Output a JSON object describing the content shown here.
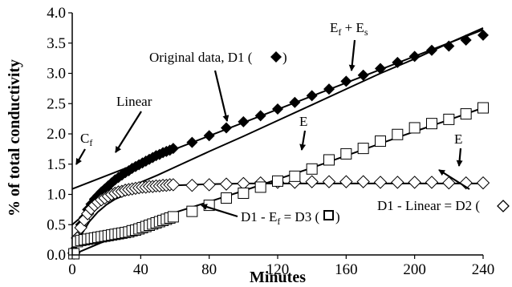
{
  "chart_data": {
    "type": "scatter",
    "xlabel": "Minutes",
    "ylabel": "% of total conductivity",
    "xlim": [
      0,
      240
    ],
    "ylim": [
      0,
      4
    ],
    "x_ticks": [
      "0",
      "40",
      "80",
      "120",
      "160",
      "200",
      "240"
    ],
    "y_ticks": [
      "0.0",
      "0.5",
      "1.0",
      "1.5",
      "2.0",
      "2.5",
      "3.0",
      "3.5",
      "4.0"
    ],
    "grid": false,
    "legend": "none",
    "series": [
      {
        "name": "Original data, D1",
        "marker": "filled-diamond",
        "color": "#000000",
        "points": [
          [
            1,
            0.08
          ],
          [
            3,
            0.3
          ],
          [
            5,
            0.5
          ],
          [
            7,
            0.62
          ],
          [
            9,
            0.75
          ],
          [
            11,
            0.84
          ],
          [
            13,
            0.92
          ],
          [
            15,
            0.98
          ],
          [
            17,
            1.04
          ],
          [
            19,
            1.09
          ],
          [
            21,
            1.14
          ],
          [
            23,
            1.19
          ],
          [
            25,
            1.24
          ],
          [
            27,
            1.28
          ],
          [
            29,
            1.32
          ],
          [
            31,
            1.36
          ],
          [
            33,
            1.39
          ],
          [
            35,
            1.43
          ],
          [
            37,
            1.46
          ],
          [
            39,
            1.49
          ],
          [
            41,
            1.52
          ],
          [
            43,
            1.55
          ],
          [
            45,
            1.58
          ],
          [
            47,
            1.61
          ],
          [
            49,
            1.64
          ],
          [
            51,
            1.66
          ],
          [
            53,
            1.69
          ],
          [
            55,
            1.71
          ],
          [
            57,
            1.73
          ],
          [
            59,
            1.76
          ],
          [
            70,
            1.86
          ],
          [
            80,
            1.97
          ],
          [
            90,
            2.1
          ],
          [
            100,
            2.2
          ],
          [
            110,
            2.3
          ],
          [
            120,
            2.41
          ],
          [
            130,
            2.52
          ],
          [
            140,
            2.63
          ],
          [
            150,
            2.74
          ],
          [
            160,
            2.87
          ],
          [
            170,
            2.97
          ],
          [
            180,
            3.08
          ],
          [
            190,
            3.18
          ],
          [
            200,
            3.28
          ],
          [
            210,
            3.38
          ],
          [
            220,
            3.45
          ],
          [
            230,
            3.55
          ],
          [
            240,
            3.63
          ]
        ]
      },
      {
        "name": "D1 - Linear = D2",
        "marker": "open-diamond",
        "color": "#000000",
        "points": [
          [
            1,
            0.03
          ],
          [
            3,
            0.28
          ],
          [
            5,
            0.45
          ],
          [
            7,
            0.58
          ],
          [
            9,
            0.68
          ],
          [
            11,
            0.76
          ],
          [
            13,
            0.82
          ],
          [
            15,
            0.87
          ],
          [
            17,
            0.91
          ],
          [
            19,
            0.94
          ],
          [
            21,
            0.97
          ],
          [
            23,
            1.0
          ],
          [
            25,
            1.02
          ],
          [
            27,
            1.04
          ],
          [
            29,
            1.05
          ],
          [
            31,
            1.07
          ],
          [
            33,
            1.08
          ],
          [
            35,
            1.09
          ],
          [
            37,
            1.1
          ],
          [
            39,
            1.11
          ],
          [
            41,
            1.12
          ],
          [
            43,
            1.12
          ],
          [
            45,
            1.13
          ],
          [
            47,
            1.13
          ],
          [
            49,
            1.14
          ],
          [
            51,
            1.14
          ],
          [
            53,
            1.15
          ],
          [
            55,
            1.15
          ],
          [
            57,
            1.16
          ],
          [
            59,
            1.16
          ],
          [
            70,
            1.15
          ],
          [
            80,
            1.16
          ],
          [
            90,
            1.17
          ],
          [
            100,
            1.18
          ],
          [
            110,
            1.19
          ],
          [
            120,
            1.2
          ],
          [
            130,
            1.2
          ],
          [
            140,
            1.21
          ],
          [
            150,
            1.21
          ],
          [
            160,
            1.21
          ],
          [
            170,
            1.21
          ],
          [
            180,
            1.2
          ],
          [
            190,
            1.2
          ],
          [
            200,
            1.2
          ],
          [
            210,
            1.2
          ],
          [
            220,
            1.19
          ],
          [
            230,
            1.19
          ],
          [
            240,
            1.19
          ]
        ]
      },
      {
        "name": "D1 - Ef = D3",
        "marker": "open-square",
        "color": "#000000",
        "points": [
          [
            1,
            0.02
          ],
          [
            3,
            0.22
          ],
          [
            5,
            0.24
          ],
          [
            7,
            0.25
          ],
          [
            9,
            0.26
          ],
          [
            11,
            0.27
          ],
          [
            13,
            0.28
          ],
          [
            15,
            0.29
          ],
          [
            17,
            0.3
          ],
          [
            19,
            0.31
          ],
          [
            21,
            0.32
          ],
          [
            23,
            0.33
          ],
          [
            25,
            0.34
          ],
          [
            27,
            0.35
          ],
          [
            29,
            0.36
          ],
          [
            31,
            0.37
          ],
          [
            33,
            0.38
          ],
          [
            35,
            0.4
          ],
          [
            37,
            0.41
          ],
          [
            39,
            0.43
          ],
          [
            41,
            0.45
          ],
          [
            43,
            0.47
          ],
          [
            45,
            0.49
          ],
          [
            47,
            0.51
          ],
          [
            49,
            0.53
          ],
          [
            51,
            0.55
          ],
          [
            53,
            0.57
          ],
          [
            55,
            0.59
          ],
          [
            57,
            0.61
          ],
          [
            59,
            0.63
          ],
          [
            70,
            0.72
          ],
          [
            80,
            0.82
          ],
          [
            90,
            0.94
          ],
          [
            100,
            1.02
          ],
          [
            110,
            1.12
          ],
          [
            120,
            1.22
          ],
          [
            130,
            1.3
          ],
          [
            140,
            1.42
          ],
          [
            150,
            1.57
          ],
          [
            160,
            1.67
          ],
          [
            170,
            1.76
          ],
          [
            180,
            1.88
          ],
          [
            190,
            1.99
          ],
          [
            200,
            2.1
          ],
          [
            210,
            2.17
          ],
          [
            220,
            2.24
          ],
          [
            230,
            2.33
          ],
          [
            240,
            2.43
          ]
        ]
      }
    ],
    "lines": [
      {
        "name": "Linear",
        "points": [
          [
            0,
            1.09
          ],
          [
            240,
            3.72
          ]
        ]
      },
      {
        "name": "Ef + Es",
        "points": [
          [
            0,
            0.5
          ],
          [
            5,
            0.62
          ],
          [
            10,
            0.72
          ],
          [
            20,
            0.9
          ],
          [
            30,
            1.05
          ],
          [
            40,
            1.2
          ],
          [
            50,
            1.32
          ],
          [
            60,
            1.45
          ],
          [
            80,
            1.71
          ],
          [
            100,
            1.96
          ],
          [
            120,
            2.22
          ],
          [
            140,
            2.48
          ],
          [
            160,
            2.74
          ],
          [
            180,
            3.0
          ],
          [
            200,
            3.24
          ],
          [
            220,
            3.5
          ],
          [
            240,
            3.75
          ]
        ]
      },
      {
        "name": "Ef",
        "points": [
          [
            0,
            0
          ],
          [
            5,
            0.32
          ],
          [
            10,
            0.55
          ],
          [
            15,
            0.71
          ],
          [
            20,
            0.83
          ],
          [
            25,
            0.92
          ],
          [
            30,
            0.98
          ],
          [
            35,
            1.03
          ],
          [
            40,
            1.07
          ],
          [
            45,
            1.1
          ],
          [
            50,
            1.12
          ],
          [
            60,
            1.15
          ],
          [
            80,
            1.17
          ],
          [
            100,
            1.18
          ],
          [
            240,
            1.18
          ]
        ]
      },
      {
        "name": "Es",
        "points": [
          [
            0,
            0
          ],
          [
            10,
            0.12
          ],
          [
            20,
            0.24
          ],
          [
            40,
            0.48
          ],
          [
            60,
            0.7
          ],
          [
            80,
            0.88
          ],
          [
            100,
            1.06
          ],
          [
            120,
            1.25
          ],
          [
            140,
            1.44
          ],
          [
            160,
            1.64
          ],
          [
            180,
            1.84
          ],
          [
            200,
            2.04
          ],
          [
            220,
            2.23
          ],
          [
            240,
            2.43
          ]
        ]
      }
    ],
    "annotations": {
      "cf": "C",
      "cf_sub": "f",
      "linear": "Linear",
      "original_data": "Original data, D1 (",
      "original_close": ")",
      "efes_e1": "E",
      "efes_f": "f",
      "efes_plus": " + E",
      "efes_s": "s",
      "e_mid": "E",
      "e_right": "E",
      "d3_prefix": "D1 - E",
      "d3_sub": "f",
      "d3_suffix": " = D3 (",
      "d3_close": ")",
      "d2_label": "D1 - Linear = D2 ("
    }
  }
}
